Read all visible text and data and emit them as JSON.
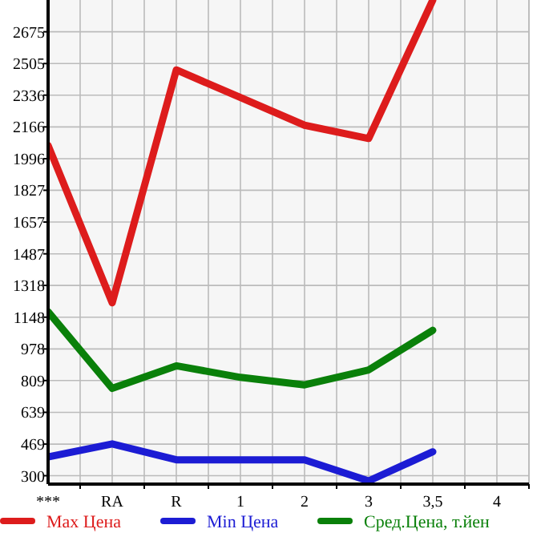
{
  "chart_data": {
    "type": "line",
    "categories": [
      "***",
      "RA",
      "R",
      "1",
      "2",
      "3",
      "3,5",
      "4"
    ],
    "series": [
      {
        "name": "Max Цена",
        "color": "#dd1c1c",
        "values": [
          2067,
          1225,
          2471,
          2323,
          2175,
          2104,
          2845,
          null
        ]
      },
      {
        "name": "Min Цена",
        "color": "#1c1cd4",
        "values": [
          400,
          470,
          385,
          385,
          385,
          272,
          428,
          null
        ]
      },
      {
        "name": "Сред.Цена, т.йен",
        "color": "#0a800a",
        "values": [
          1177,
          767,
          888,
          826,
          786,
          866,
          1078,
          null
        ]
      }
    ],
    "ylim": [
      255,
      2845
    ],
    "yticks": [
      300,
      469,
      639,
      809,
      978,
      1148,
      1318,
      1487,
      1657,
      1827,
      1996,
      2166,
      2336,
      2505,
      2675
    ],
    "grid": true,
    "legend": "bottom",
    "marker": "none",
    "line_style": "solid"
  }
}
